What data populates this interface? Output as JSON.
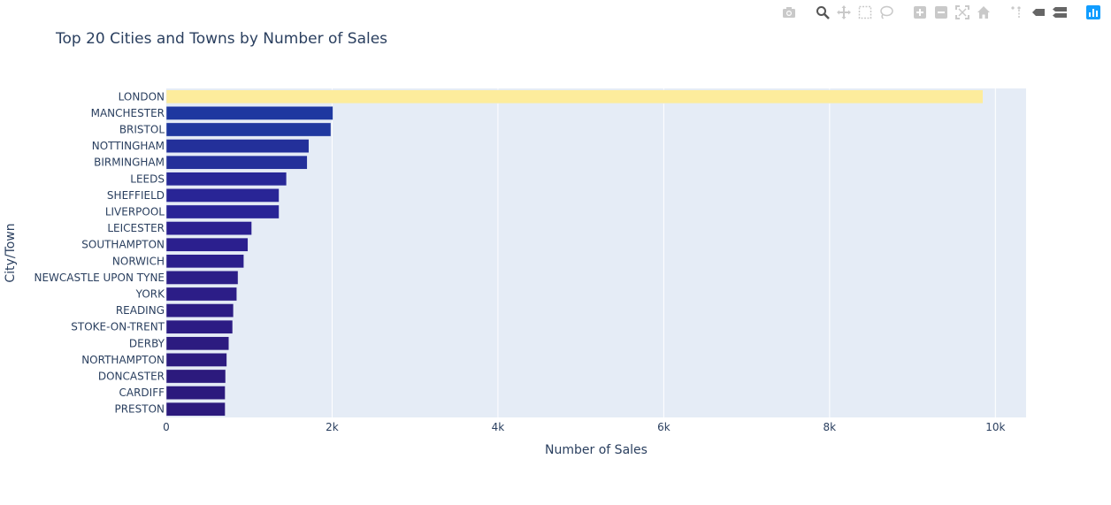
{
  "chart_data": {
    "type": "bar",
    "orientation": "horizontal",
    "title": "Top 20 Cities and Towns by Number of Sales",
    "xlabel": "Number of Sales",
    "ylabel": "City/Town",
    "xlim": [
      0,
      10370
    ],
    "xticks": [
      {
        "value": 0,
        "label": "0"
      },
      {
        "value": 2000,
        "label": "2k"
      },
      {
        "value": 4000,
        "label": "4k"
      },
      {
        "value": 6000,
        "label": "6k"
      },
      {
        "value": 8000,
        "label": "8k"
      },
      {
        "value": 10000,
        "label": "10k"
      }
    ],
    "grid": true,
    "plot_bgcolor": "#e5ecf6",
    "categories": [
      "LONDON",
      "MANCHESTER",
      "BRISTOL",
      "NOTTINGHAM",
      "BIRMINGHAM",
      "LEEDS",
      "SHEFFIELD",
      "LIVERPOOL",
      "LEICESTER",
      "SOUTHAMPTON",
      "NORWICH",
      "NEWCASTLE UPON TYNE",
      "YORK",
      "READING",
      "STOKE-ON-TRENT",
      "DERBY",
      "NORTHAMPTON",
      "DONCASTER",
      "CARDIFF",
      "PRESTON"
    ],
    "values": [
      9850,
      2010,
      1985,
      1720,
      1700,
      1450,
      1360,
      1360,
      1030,
      985,
      935,
      865,
      850,
      810,
      800,
      755,
      730,
      715,
      710,
      710
    ],
    "colors": [
      "#fdec9c",
      "#1e38a0",
      "#1f389f",
      "#23309a",
      "#24309a",
      "#272897",
      "#292596",
      "#292596",
      "#2b2090",
      "#2b1f8e",
      "#2b1f8c",
      "#2c1e88",
      "#2c1d87",
      "#2c1c84",
      "#2c1c84",
      "#2c1b80",
      "#2c1b7f",
      "#2c1a7d",
      "#2c1a7d",
      "#2c1a7d"
    ]
  },
  "modebar": {
    "icons": [
      "camera-icon",
      "zoom-icon",
      "pan-icon",
      "box-select-icon",
      "lasso-select-icon",
      "zoom-in-icon",
      "zoom-out-icon",
      "autoscale-icon",
      "reset-axes-icon",
      "spike-lines-icon",
      "hover-closest-icon",
      "hover-compare-icon",
      "plotly-logo-icon"
    ]
  }
}
